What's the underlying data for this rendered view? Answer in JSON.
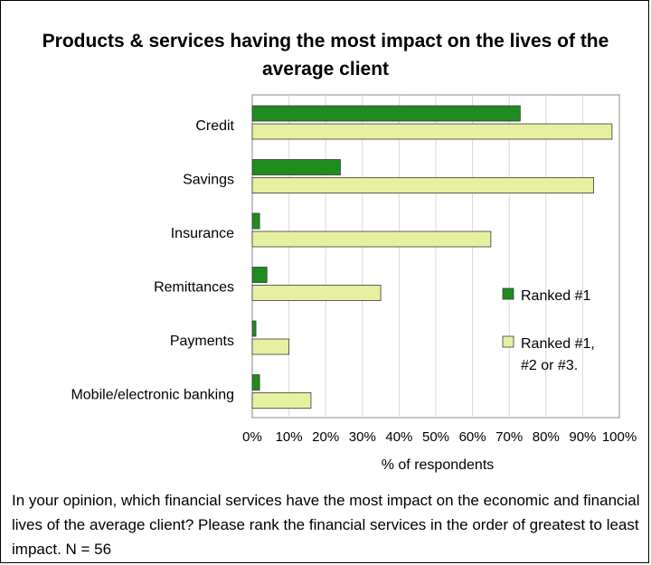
{
  "chart_data": {
    "type": "bar",
    "orientation": "horizontal",
    "title": "Products & services having the most impact on the lives of the average client",
    "xlabel": "% of respondents",
    "ylabel": "",
    "xlim": [
      0,
      100
    ],
    "x_ticks": [
      "0%",
      "10%",
      "20%",
      "30%",
      "40%",
      "50%",
      "60%",
      "70%",
      "80%",
      "90%",
      "100%"
    ],
    "categories": [
      "Credit",
      "Savings",
      "Insurance",
      "Remittances",
      "Payments",
      "Mobile/electronic banking"
    ],
    "series": [
      {
        "name": "Ranked #1",
        "values": [
          73,
          24,
          2,
          4,
          1,
          2
        ],
        "color": "#1e8c1e"
      },
      {
        "name": "Ranked #1, #2 or #3.",
        "values": [
          98,
          93,
          65,
          35,
          10,
          16
        ],
        "color": "#e6f0a0"
      }
    ],
    "grid": true,
    "legend_position": "right",
    "legend_lines": [
      [
        "Ranked #1"
      ],
      [
        "Ranked #1,",
        "#2 or #3."
      ]
    ]
  },
  "footnote": "In your opinion, which financial services have the most impact on the economic and financial lives of the average client? Please rank the financial services in the order of greatest to least impact. N = 56"
}
